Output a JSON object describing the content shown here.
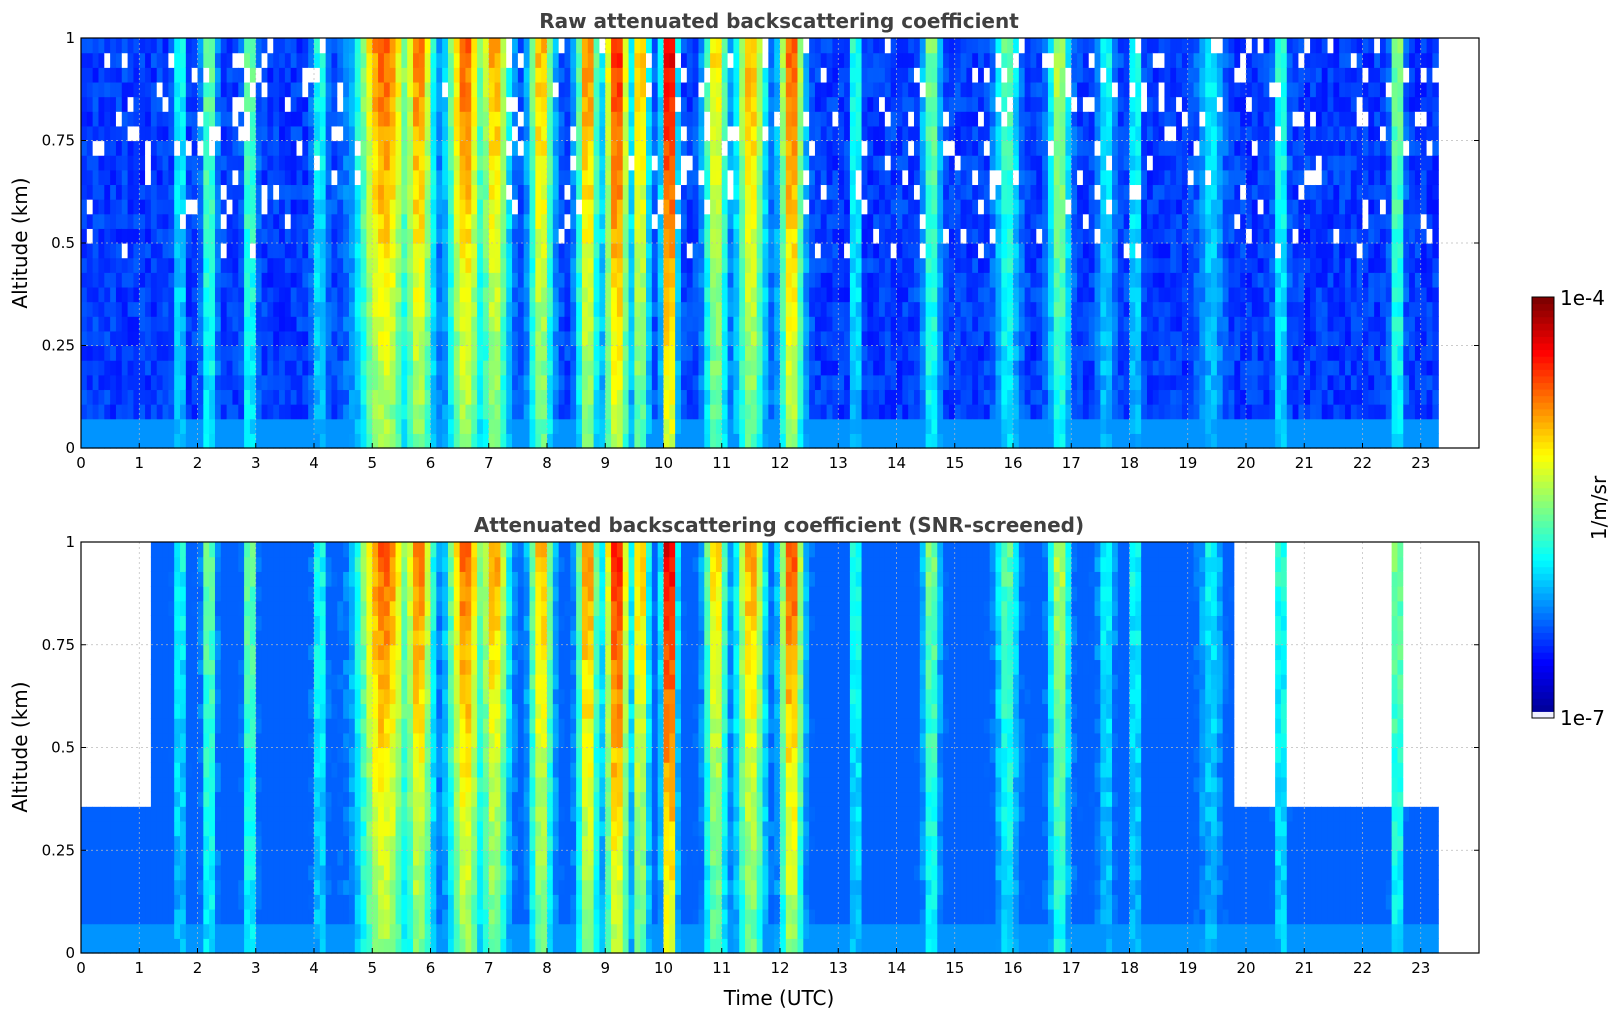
{
  "chart_data": [
    {
      "type": "heatmap",
      "title": "Raw attenuated backscattering coefficient",
      "xlabel": "",
      "ylabel": "Altitude (km)",
      "xlim": [
        0,
        24
      ],
      "ylim": [
        0,
        1
      ],
      "x_ticks": [
        "0",
        "1",
        "2",
        "3",
        "4",
        "5",
        "6",
        "7",
        "8",
        "9",
        "10",
        "11",
        "12",
        "13",
        "14",
        "15",
        "16",
        "17",
        "18",
        "19",
        "20",
        "21",
        "22",
        "23"
      ],
      "y_ticks": [
        "0",
        "0.25",
        "0.5",
        "0.75",
        "1"
      ],
      "data_end_x": 23.3,
      "grid": true,
      "colorscale": "jet",
      "log_scale": true,
      "screened": false
    },
    {
      "type": "heatmap",
      "title": "Attenuated backscattering coefficient (SNR-screened)",
      "xlabel": "Time (UTC)",
      "ylabel": "Altitude (km)",
      "xlim": [
        0,
        24
      ],
      "ylim": [
        0,
        1
      ],
      "x_ticks": [
        "0",
        "1",
        "2",
        "3",
        "4",
        "5",
        "6",
        "7",
        "8",
        "9",
        "10",
        "11",
        "12",
        "13",
        "14",
        "15",
        "16",
        "17",
        "18",
        "19",
        "20",
        "21",
        "22",
        "23"
      ],
      "y_ticks": [
        "0",
        "0.25",
        "0.5",
        "0.75",
        "1"
      ],
      "data_end_x": 23.3,
      "grid": true,
      "colorscale": "jet",
      "log_scale": true,
      "screened": true
    }
  ],
  "colorbar": {
    "label": "1/m/sr",
    "max_label": "1e-4",
    "min_label": "1e-7",
    "range": [
      1e-07,
      0.0001
    ],
    "scale": "log"
  },
  "colors": {
    "jet": [
      "#00008f",
      "#0000ff",
      "#0080ff",
      "#00ffff",
      "#80ff80",
      "#ffff00",
      "#ff8000",
      "#ff0000",
      "#800000"
    ],
    "lowest": "#f0f0ff",
    "background": "#ffffff"
  }
}
